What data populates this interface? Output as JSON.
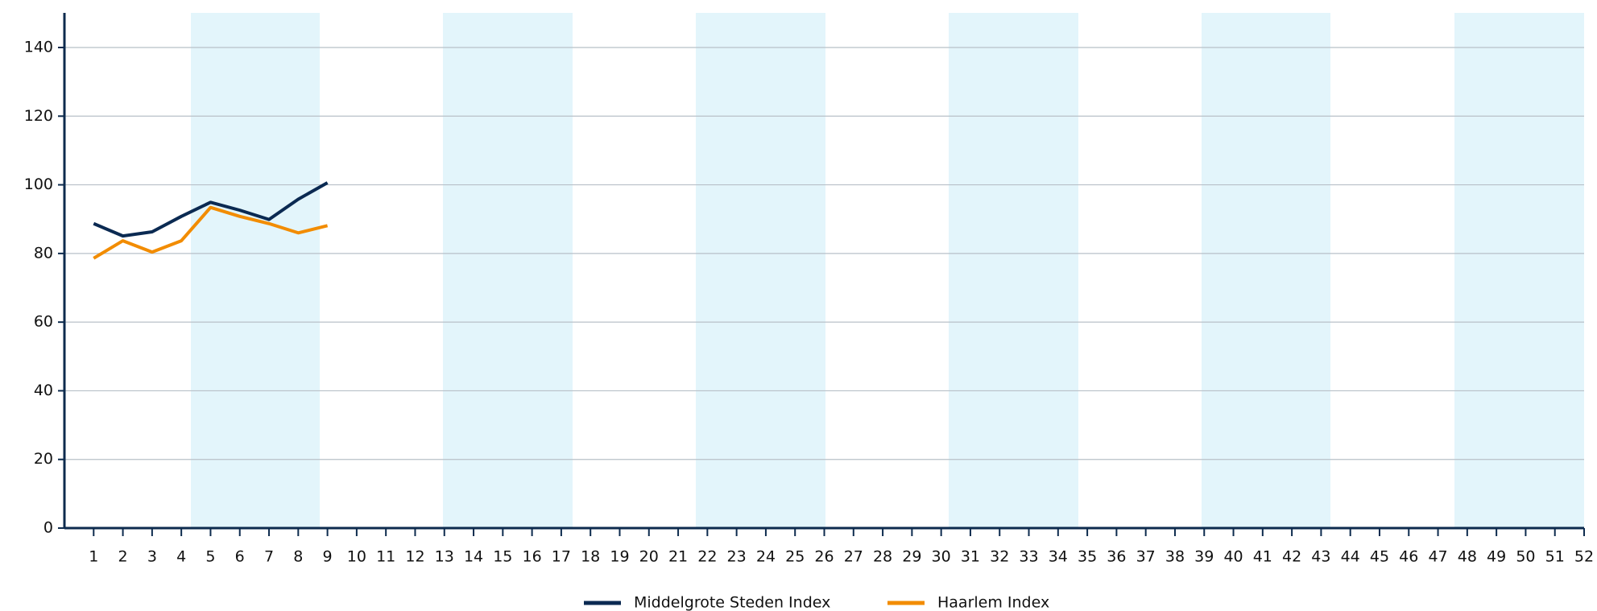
{
  "chart_data": {
    "type": "line",
    "categories": [
      "1",
      "2",
      "3",
      "4",
      "5",
      "6",
      "7",
      "8",
      "9",
      "10",
      "11",
      "12",
      "13",
      "14",
      "15",
      "16",
      "17",
      "18",
      "19",
      "20",
      "21",
      "22",
      "23",
      "24",
      "25",
      "26",
      "27",
      "28",
      "29",
      "30",
      "31",
      "32",
      "33",
      "34",
      "35",
      "36",
      "37",
      "38",
      "39",
      "40",
      "41",
      "42",
      "43",
      "44",
      "45",
      "46",
      "47",
      "48",
      "49",
      "50",
      "51",
      "52"
    ],
    "series": [
      {
        "name": "Middelgrote Steden Index",
        "color": "#0b2a52",
        "values": [
          88.7,
          85.1,
          86.3,
          90.8,
          94.9,
          92.6,
          89.9,
          95.8,
          100.6,
          null,
          null,
          null,
          null,
          null,
          null,
          null,
          null,
          null,
          null,
          null,
          null,
          null,
          null,
          null,
          null,
          null,
          null,
          null,
          null,
          null,
          null,
          null,
          null,
          null,
          null,
          null,
          null,
          null,
          null,
          null,
          null,
          null,
          null,
          null,
          null,
          null,
          null,
          null,
          null,
          null,
          null,
          null
        ]
      },
      {
        "name": "Haarlem Index",
        "color": "#f28c00",
        "values": [
          78.6,
          83.7,
          80.4,
          83.7,
          93.4,
          90.8,
          88.7,
          86.0,
          88.1,
          null,
          null,
          null,
          null,
          null,
          null,
          null,
          null,
          null,
          null,
          null,
          null,
          null,
          null,
          null,
          null,
          null,
          null,
          null,
          null,
          null,
          null,
          null,
          null,
          null,
          null,
          null,
          null,
          null,
          null,
          null,
          null,
          null,
          null,
          null,
          null,
          null,
          null,
          null,
          null,
          null,
          null,
          null
        ]
      }
    ],
    "ylim": [
      0,
      150
    ],
    "yticks": [
      0,
      20,
      40,
      60,
      80,
      100,
      120,
      140
    ],
    "grid": true,
    "legend": "bottom"
  }
}
